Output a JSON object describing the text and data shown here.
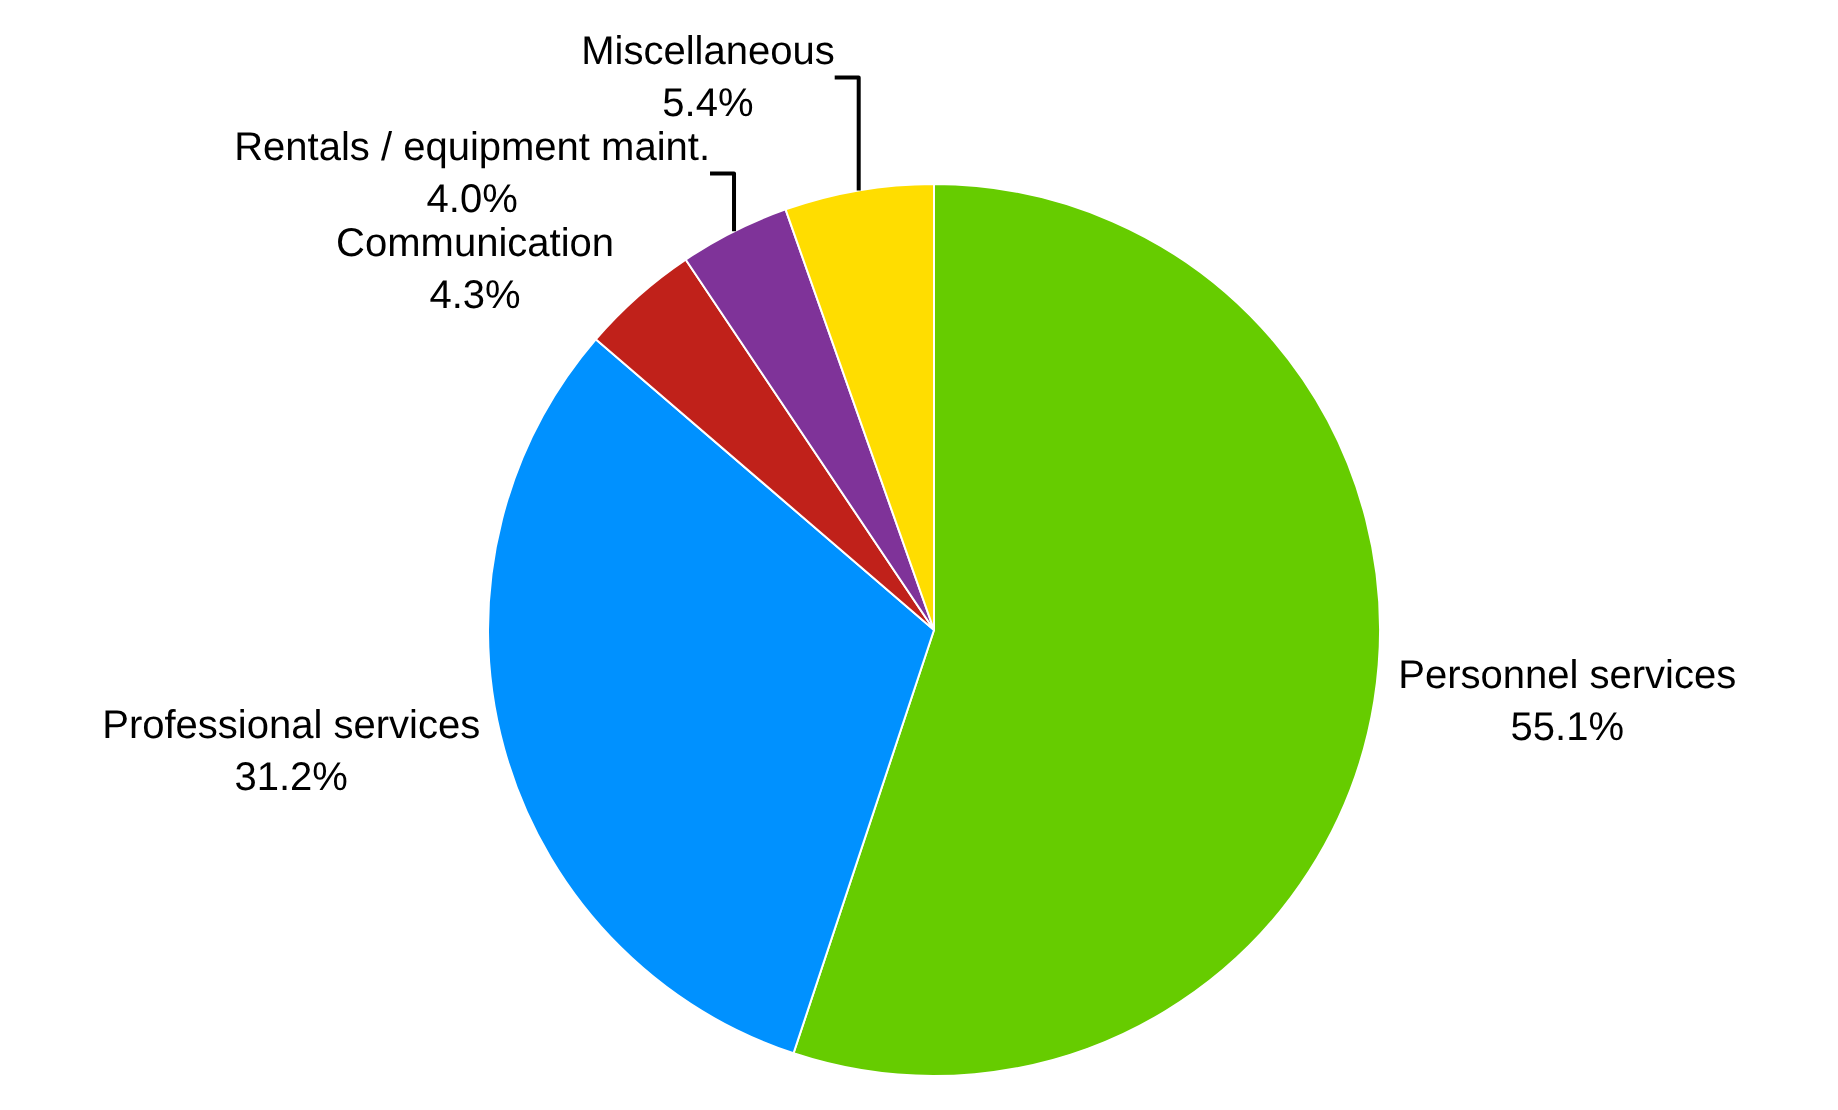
{
  "chart_data": {
    "type": "pie",
    "categories": [
      "Personnel services",
      "Professional services",
      "Communication",
      "Rentals / equipment maint.",
      "Miscellaneous"
    ],
    "values": [
      55.1,
      31.2,
      4.3,
      4.0,
      5.4
    ],
    "value_labels": [
      "55.1%",
      "31.2%",
      "4.3%",
      "4.0%",
      "5.4%"
    ],
    "colors": [
      "#66cc00",
      "#0091ff",
      "#c0211a",
      "#7f3399",
      "#ffdd00"
    ],
    "legend": false
  }
}
